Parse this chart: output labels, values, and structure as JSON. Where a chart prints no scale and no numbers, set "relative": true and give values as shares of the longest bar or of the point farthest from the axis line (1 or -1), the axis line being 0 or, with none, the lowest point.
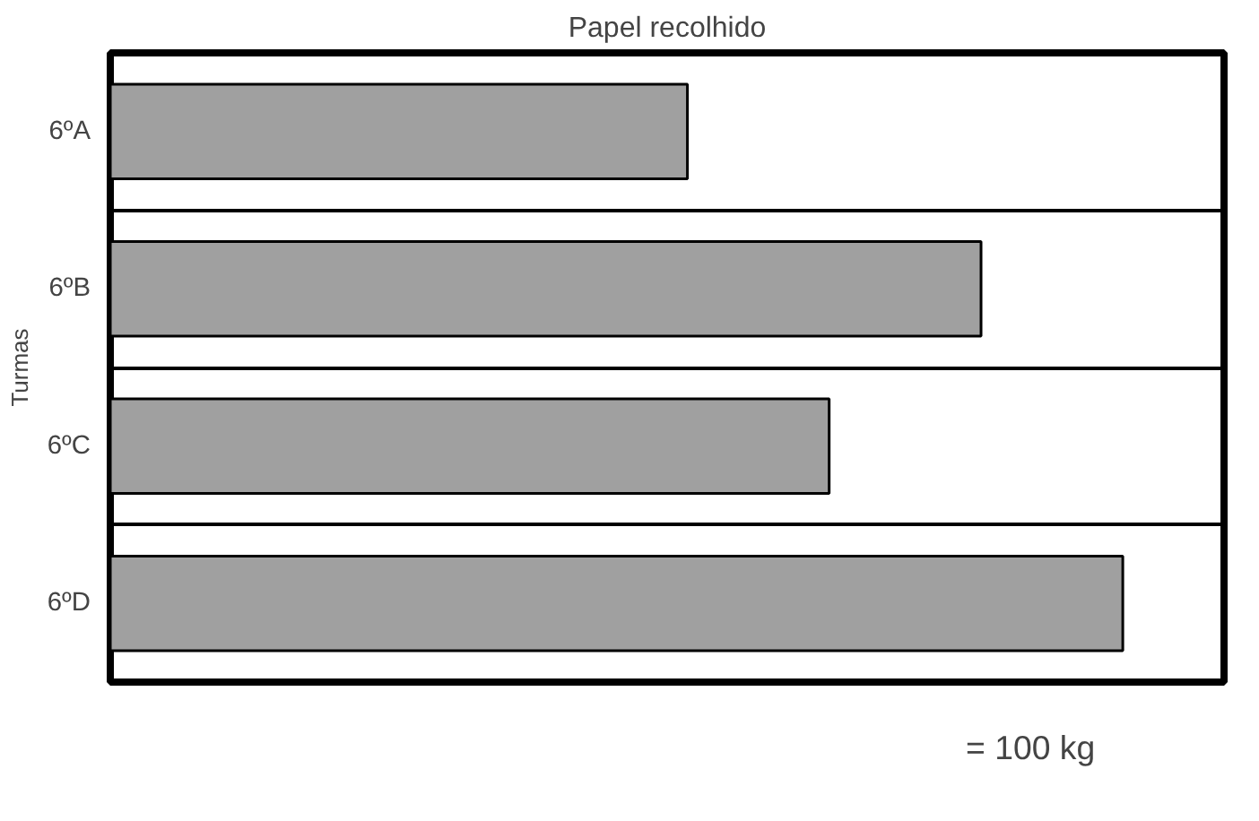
{
  "chart_data": {
    "type": "bar",
    "orientation": "horizontal",
    "relative": true,
    "title": "Papel recolhido",
    "ylabel": "Turmas",
    "categories": [
      "6ºA",
      "6ºB",
      "6ºC",
      "6ºD"
    ],
    "values": [
      0.57,
      0.86,
      0.71,
      1
    ],
    "color": "#a0a0a0",
    "annotations": [
      "= 100 kg"
    ]
  }
}
